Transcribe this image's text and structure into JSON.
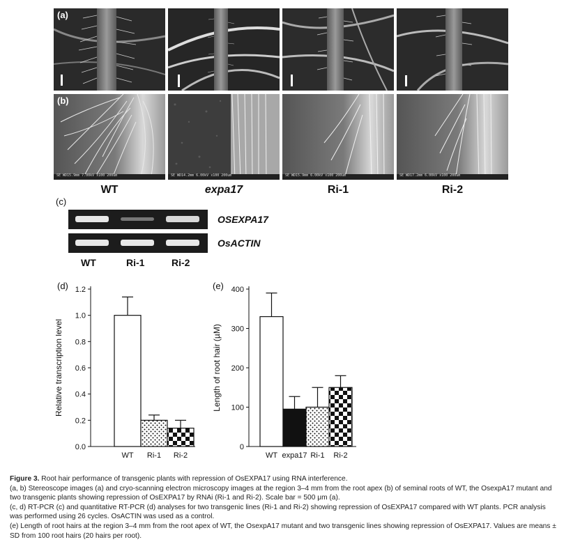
{
  "panels": {
    "a": "(a)",
    "b": "(b)",
    "c": "(c)",
    "d": "(d)",
    "e": "(e)"
  },
  "genotypes": [
    "WT",
    "expa17",
    "Ri-1",
    "Ri-2"
  ],
  "sem_info": [
    "SE   WD15.9mm 7.00kV x100   200um",
    "SE   WD14.2mm 6.00kV x100   200um",
    "SE   WD15.9mm 6.00kV x100   200um",
    "SE   WD17.2mm 6.00kV x100   200um"
  ],
  "gel": {
    "rows": [
      "OSEXPA17",
      "OsACTIN"
    ],
    "lanes": [
      "WT",
      "Ri-1",
      "Ri-2"
    ],
    "band_intensity": [
      [
        1.0,
        0.25,
        0.95
      ],
      [
        1.0,
        1.0,
        1.0
      ]
    ]
  },
  "chart_data": [
    {
      "type": "bar",
      "panel": "(d)",
      "ylabel": "Relative transcription level",
      "categories": [
        "WT",
        "Ri-1",
        "Ri-2"
      ],
      "values": [
        1.0,
        0.2,
        0.14
      ],
      "errors": [
        0.14,
        0.04,
        0.06
      ],
      "fills": [
        "white",
        "dots",
        "checker"
      ],
      "ylim": [
        0,
        1.2
      ],
      "yticks": [
        "0.0",
        "0.2",
        "0.4",
        "0.6",
        "0.8",
        "1.0",
        "1.2"
      ]
    },
    {
      "type": "bar",
      "panel": "(e)",
      "ylabel": "Length of root hair (µM)",
      "categories": [
        "WT",
        "expa17",
        "Ri-1",
        "Ri-2"
      ],
      "values": [
        330,
        95,
        100,
        150
      ],
      "errors": [
        60,
        32,
        50,
        30
      ],
      "fills": [
        "white",
        "black",
        "dots",
        "checker"
      ],
      "ylim": [
        0,
        400
      ],
      "yticks": [
        "0",
        "100",
        "200",
        "300",
        "400"
      ]
    }
  ],
  "caption": {
    "figure_label": "Figure 3.",
    "title": " Root hair performance of transgenic plants with repression of OsEXPA17 using RNA interference.",
    "line_ab": "(a, b) Stereoscope images (a) and cryo-scanning electron microscopy images at the region 3–4 mm from the root apex (b) of seminal roots of WT, the OsexpA17 mutant and two transgenic plants showing repression of OsEXPA17 by RNAi (Ri-1 and Ri-2). Scale bar = 500 μm (a).",
    "line_cd": "(c, d) RT-PCR (c) and quantitative RT-PCR (d) analyses for two transgenic lines (Ri-1 and Ri-2) showing repression of OsEXPA17 compared with WT plants. PCR analysis was performed using 26 cycles. OsACTIN was used as a control.",
    "line_e": "(e) Length of root hairs at the region 3–4 mm from the root apex of WT, the OsexpA17 mutant and two transgenic lines showing repression of OsEXPA17. Values are means ± SD from 100 root hairs (20 hairs per root)."
  }
}
